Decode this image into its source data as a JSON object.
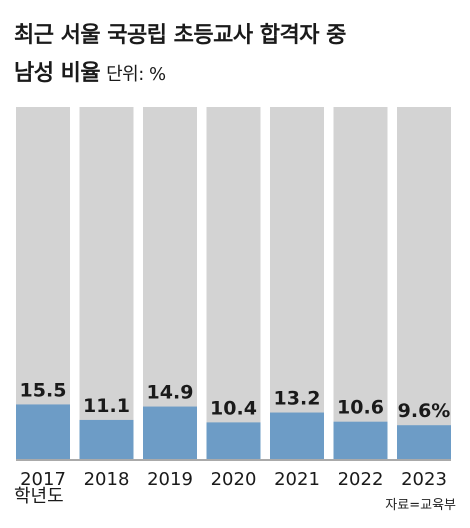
{
  "title_line1": "최근 서울 국공립 초등교사 합격자 중",
  "title_line2": "남성 비율",
  "unit_label": "단위: %",
  "x_unit_label": "학년도",
  "source": "자료=교육부",
  "colors": {
    "bar_bg": "#d3d3d3",
    "bar_value": "#6d9cc6",
    "text": "#1a1a1a"
  },
  "chart_data": {
    "type": "bar",
    "title": "최근 서울 국공립 초등교사 합격자 중 남성 비율",
    "categories": [
      "2017",
      "2018",
      "2019",
      "2020",
      "2021",
      "2022",
      "2023"
    ],
    "values": [
      15.5,
      11.1,
      14.9,
      10.4,
      13.2,
      10.6,
      9.6
    ],
    "value_labels": [
      "15.5",
      "11.1",
      "14.9",
      "10.4",
      "13.2",
      "10.6",
      "9.6%"
    ],
    "ylim": [
      0,
      100
    ],
    "xlabel": "학년도",
    "ylabel": ""
  }
}
